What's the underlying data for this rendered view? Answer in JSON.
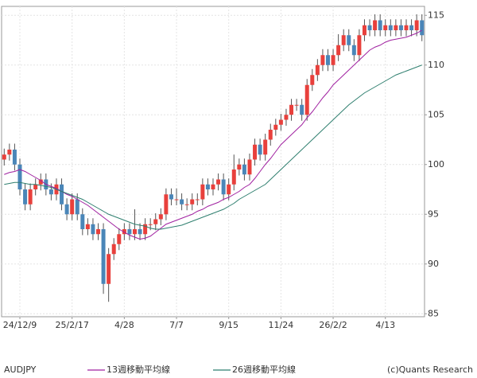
{
  "chart_data": {
    "type": "candlestick",
    "title": "AUDJPY",
    "source": "(c)Quants Research",
    "categories": [
      null,
      null,
      null,
      "24/12/9",
      null,
      null,
      null,
      null,
      null,
      null,
      null,
      null,
      null,
      "25/2/17",
      null,
      null,
      null,
      null,
      null,
      null,
      null,
      null,
      null,
      "4/28",
      null,
      null,
      null,
      null,
      null,
      null,
      null,
      null,
      null,
      "7/7",
      null,
      null,
      null,
      null,
      null,
      null,
      null,
      null,
      null,
      "9/15",
      null,
      null,
      null,
      null,
      null,
      null,
      null,
      null,
      null,
      "11/24",
      null,
      null,
      null,
      null,
      null,
      null,
      null,
      null,
      null,
      "26/2/2",
      null,
      null,
      null,
      null,
      null,
      null,
      null,
      null,
      null,
      "4/13",
      null,
      null,
      null,
      null,
      null,
      null,
      null
    ],
    "open": [
      100.5,
      101.0,
      101.5,
      100.0,
      97.5,
      96.0,
      97.5,
      98.0,
      98.5,
      97.5,
      97.0,
      98.0,
      96.0,
      95.0,
      96.5,
      95.0,
      93.5,
      94.0,
      93.0,
      93.5,
      88.0,
      91.0,
      92.0,
      93.0,
      93.5,
      93.0,
      93.5,
      93.0,
      94.0,
      94.0,
      94.5,
      95.0,
      97.0,
      96.5,
      96.5,
      96.0,
      96.0,
      96.5,
      96.5,
      98.0,
      97.5,
      98.0,
      98.5,
      97.0,
      98.0,
      99.5,
      100.0,
      99.0,
      100.5,
      102.0,
      101.0,
      102.5,
      103.5,
      104.0,
      104.5,
      105.0,
      106.0,
      106.0,
      105.0,
      108.0,
      109.0,
      110.0,
      111.0,
      110.0,
      111.0,
      112.0,
      113.0,
      112.0,
      111.0,
      113.0,
      114.0,
      113.5,
      114.5,
      113.5,
      114.0,
      113.5,
      114.0,
      113.5,
      114.0,
      113.5,
      114.5
    ],
    "high": [
      101.6,
      102.1,
      102.1,
      100.6,
      98.1,
      98.1,
      98.6,
      99.1,
      99.1,
      98.1,
      98.6,
      98.6,
      96.6,
      97.1,
      97.1,
      95.6,
      94.6,
      94.6,
      94.1,
      94.1,
      91.6,
      92.6,
      93.6,
      94.1,
      94.1,
      95.5,
      94.1,
      94.6,
      94.6,
      95.1,
      95.6,
      97.6,
      97.6,
      97.6,
      97.1,
      96.6,
      97.1,
      97.1,
      98.6,
      98.6,
      98.6,
      99.1,
      99.1,
      98.6,
      101.0,
      100.6,
      100.6,
      101.1,
      102.6,
      102.6,
      103.1,
      104.1,
      104.6,
      105.1,
      105.6,
      106.6,
      106.6,
      106.6,
      108.6,
      109.6,
      110.6,
      111.6,
      111.6,
      111.6,
      113.1,
      113.6,
      113.6,
      112.6,
      113.6,
      114.6,
      114.6,
      115.1,
      115.1,
      114.6,
      114.6,
      114.6,
      114.6,
      114.6,
      114.6,
      115.1,
      115.1
    ],
    "low": [
      99.9,
      100.4,
      99.4,
      96.9,
      95.4,
      95.4,
      96.9,
      97.4,
      96.9,
      96.4,
      96.4,
      95.4,
      94.4,
      94.4,
      94.4,
      92.9,
      92.9,
      92.4,
      92.4,
      87.0,
      86.2,
      90.4,
      91.4,
      92.4,
      92.4,
      92.4,
      92.4,
      92.4,
      93.4,
      93.4,
      93.9,
      94.4,
      95.9,
      95.9,
      95.4,
      95.4,
      95.4,
      95.9,
      95.9,
      96.9,
      96.9,
      97.4,
      96.4,
      96.4,
      97.4,
      98.9,
      98.4,
      98.4,
      99.9,
      100.4,
      100.4,
      101.9,
      102.9,
      103.4,
      103.9,
      104.4,
      105.4,
      104.4,
      104.4,
      107.4,
      108.4,
      109.4,
      109.4,
      109.4,
      110.4,
      111.4,
      111.4,
      110.4,
      110.4,
      112.4,
      112.9,
      112.9,
      112.9,
      112.9,
      112.9,
      112.9,
      112.9,
      112.9,
      112.9,
      112.9,
      112.4
    ],
    "close": [
      101.0,
      101.5,
      100.0,
      97.5,
      96.0,
      97.5,
      98.0,
      98.5,
      97.5,
      97.0,
      98.0,
      96.0,
      95.0,
      96.5,
      95.0,
      93.5,
      94.0,
      93.0,
      93.5,
      88.0,
      91.0,
      92.0,
      93.0,
      93.5,
      93.0,
      93.5,
      93.0,
      94.0,
      94.0,
      94.5,
      95.0,
      97.0,
      96.5,
      96.5,
      96.0,
      96.0,
      96.5,
      96.5,
      98.0,
      97.5,
      98.0,
      98.5,
      97.0,
      98.0,
      99.5,
      100.0,
      99.0,
      100.5,
      102.0,
      101.0,
      102.5,
      103.5,
      104.0,
      104.5,
      105.0,
      106.0,
      106.0,
      105.0,
      108.0,
      109.0,
      110.0,
      111.0,
      110.0,
      111.0,
      112.0,
      113.0,
      112.0,
      111.0,
      113.0,
      114.0,
      113.5,
      114.5,
      113.5,
      114.0,
      113.5,
      114.0,
      113.5,
      114.0,
      113.5,
      114.5,
      113.0
    ],
    "up_color": "#e8403c",
    "down_color": "#4a86b8",
    "series": [
      {
        "name": "13週移動平均線",
        "color": "#a020a0",
        "values": [
          99.0,
          99.2,
          99.3,
          99.5,
          99.3,
          99.0,
          98.7,
          98.4,
          98.0,
          97.8,
          97.6,
          97.3,
          97.0,
          96.8,
          96.5,
          96.2,
          95.9,
          95.5,
          95.1,
          94.7,
          94.3,
          93.9,
          93.5,
          93.2,
          92.9,
          92.7,
          92.5,
          92.6,
          92.8,
          93.2,
          93.6,
          94.0,
          94.2,
          94.4,
          94.6,
          94.8,
          95.0,
          95.3,
          95.5,
          95.8,
          96.0,
          96.2,
          96.5,
          96.7,
          97.0,
          97.3,
          97.7,
          98.0,
          98.6,
          99.3,
          100.0,
          100.6,
          101.3,
          102.0,
          102.5,
          103.0,
          103.5,
          104.0,
          104.7,
          105.3,
          106.0,
          106.7,
          107.3,
          108.0,
          108.5,
          109.0,
          109.5,
          110.0,
          110.5,
          111.0,
          111.5,
          111.8,
          112.0,
          112.3,
          112.5,
          112.6,
          112.7,
          112.8,
          113.0,
          113.2,
          113.5
        ]
      },
      {
        "name": "26週移動平均線",
        "color": "#2f7f6f",
        "values": [
          98.0,
          98.1,
          98.2,
          98.2,
          98.1,
          98.0,
          98.0,
          97.9,
          97.8,
          97.7,
          97.5,
          97.3,
          97.1,
          96.9,
          96.7,
          96.5,
          96.2,
          95.9,
          95.6,
          95.3,
          95.0,
          94.8,
          94.6,
          94.4,
          94.2,
          94.0,
          93.9,
          93.8,
          93.6,
          93.5,
          93.5,
          93.6,
          93.7,
          93.8,
          93.9,
          94.1,
          94.3,
          94.5,
          94.7,
          94.9,
          95.1,
          95.3,
          95.5,
          95.8,
          96.1,
          96.5,
          96.8,
          97.1,
          97.4,
          97.7,
          98.0,
          98.5,
          99.0,
          99.5,
          100.0,
          100.5,
          101.0,
          101.5,
          102.0,
          102.5,
          103.0,
          103.5,
          104.0,
          104.5,
          105.0,
          105.5,
          106.0,
          106.4,
          106.8,
          107.2,
          107.5,
          107.8,
          108.1,
          108.4,
          108.7,
          109.0,
          109.2,
          109.4,
          109.6,
          109.8,
          110.0
        ]
      }
    ],
    "ylim": [
      84.7,
      115.9
    ],
    "yticks": [
      85,
      90,
      95,
      100,
      105,
      110,
      115
    ],
    "grid": true
  }
}
